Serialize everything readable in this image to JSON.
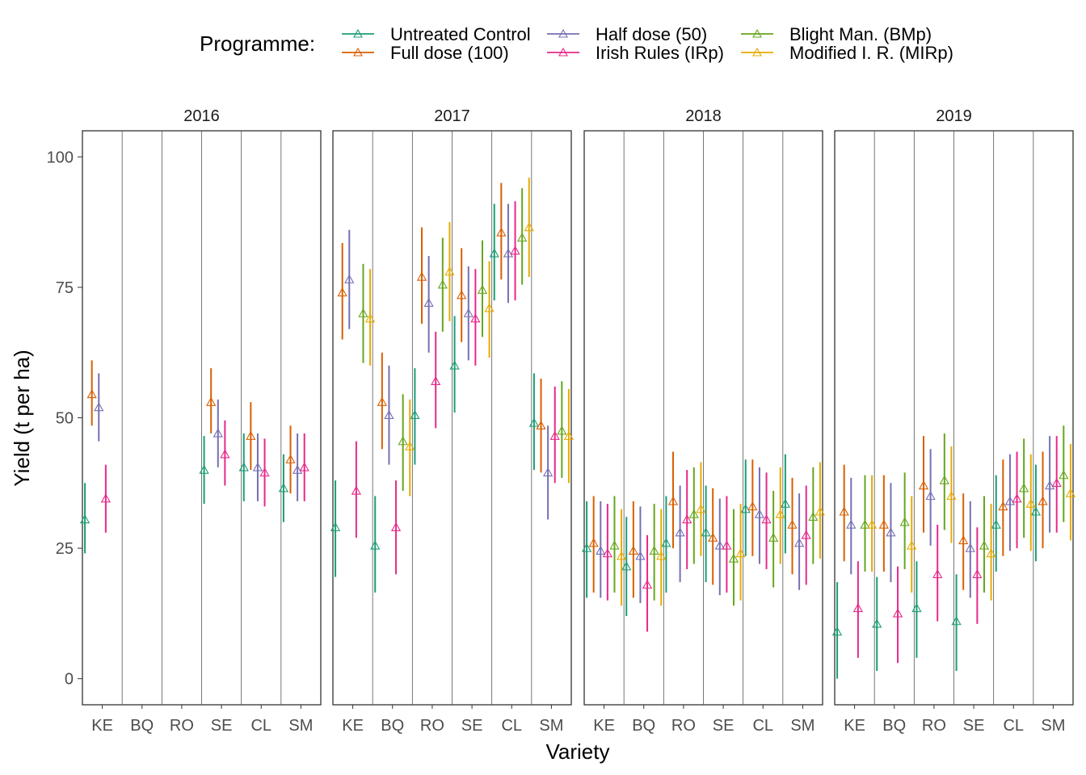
{
  "legend": {
    "title": "Programme:",
    "placement": "top"
  },
  "chart_data": {
    "type": "scatter",
    "description_kind": "faceted point-range (mean with interval) by year panel",
    "panels": [
      "2016",
      "2017",
      "2018",
      "2019"
    ],
    "categories": [
      "KE",
      "BQ",
      "RO",
      "SE",
      "CL",
      "SM"
    ],
    "xlabel": "Variety",
    "ylabel": "Yield (t per ha)",
    "ylim": [
      -5,
      105
    ],
    "yticks": [
      0,
      25,
      50,
      75,
      100
    ],
    "grid": false,
    "series": [
      {
        "name": "Untreated Control",
        "color": "#1b9e77",
        "points": {
          "2016": [
            [
              30.5,
              24,
              37.5
            ],
            null,
            null,
            [
              40,
              33.5,
              46.5
            ],
            [
              40.5,
              34,
              47
            ],
            [
              36.5,
              30,
              43
            ]
          ],
          "2017": [
            [
              29,
              19.5,
              38
            ],
            [
              25.5,
              16.5,
              35
            ],
            [
              50.5,
              41,
              59.5
            ],
            [
              60,
              51,
              69.5
            ],
            [
              81.5,
              72.5,
              91
            ],
            [
              49,
              40,
              58.5
            ]
          ],
          "2018": [
            [
              25,
              15.5,
              34
            ],
            [
              21.5,
              12,
              31
            ],
            [
              26,
              16.5,
              35
            ],
            [
              28,
              18.5,
              37
            ],
            [
              32.5,
              23.5,
              42
            ],
            [
              33.5,
              24,
              43
            ]
          ],
          "2019": [
            [
              9,
              0,
              18.5
            ],
            [
              10.5,
              1.5,
              19.5
            ],
            [
              13.5,
              4,
              22.5
            ],
            [
              11,
              1.5,
              20
            ],
            [
              29.5,
              20.5,
              39
            ],
            [
              32,
              22.5,
              41
            ]
          ]
        }
      },
      {
        "name": "Full dose (100)",
        "color": "#d95f02",
        "points": {
          "2016": [
            [
              54.5,
              48.5,
              61
            ],
            null,
            null,
            [
              53,
              47,
              59.5
            ],
            [
              46.5,
              40,
              53
            ],
            [
              42,
              35.5,
              48.5
            ]
          ],
          "2017": [
            [
              74,
              65,
              83.5
            ],
            [
              53,
              44,
              62.5
            ],
            [
              77,
              68,
              86.5
            ],
            [
              73.5,
              64.5,
              82.5
            ],
            [
              85.5,
              76.5,
              95
            ],
            [
              48.5,
              39.5,
              57.5
            ]
          ],
          "2018": [
            [
              26,
              16.5,
              35
            ],
            [
              24.5,
              15.5,
              34
            ],
            [
              34,
              25,
              43.5
            ],
            [
              27,
              18,
              36.5
            ],
            [
              33,
              23.5,
              42
            ],
            [
              29.5,
              20,
              38.5
            ]
          ],
          "2019": [
            [
              32,
              22.5,
              41
            ],
            [
              29.5,
              20.5,
              39
            ],
            [
              37,
              28,
              46.5
            ],
            [
              26.5,
              17,
              35.5
            ],
            [
              33,
              23.5,
              42
            ],
            [
              34,
              25,
              43.5
            ]
          ]
        }
      },
      {
        "name": "Half dose (50)",
        "color": "#7570b3",
        "points": {
          "2016": [
            [
              52,
              45.5,
              58.5
            ],
            null,
            null,
            [
              47,
              40.5,
              53.5
            ],
            [
              40.5,
              34,
              47
            ],
            [
              40,
              34,
              47
            ]
          ],
          "2017": [
            [
              76.5,
              67,
              86
            ],
            [
              50.5,
              41,
              60
            ],
            [
              72,
              62.5,
              81
            ],
            [
              70,
              61,
              79
            ],
            [
              81.5,
              72,
              91
            ],
            [
              39.5,
              30.5,
              48.5
            ]
          ],
          "2018": [
            [
              24.5,
              15.5,
              34
            ],
            [
              23.5,
              14.5,
              33
            ],
            [
              28,
              18.5,
              37
            ],
            [
              25.5,
              16,
              34.5
            ],
            [
              31.5,
              22,
              40.5
            ],
            [
              26,
              17,
              35.5
            ]
          ],
          "2019": [
            [
              29.5,
              20,
              38.5
            ],
            [
              28,
              18.5,
              37.5
            ],
            [
              35,
              25.5,
              44
            ],
            [
              25,
              15.5,
              34
            ],
            [
              34,
              24.5,
              43
            ],
            [
              37,
              28,
              46.5
            ]
          ]
        }
      },
      {
        "name": "Irish Rules (IRp)",
        "color": "#e7298a",
        "points": {
          "2016": [
            [
              34.5,
              28,
              41
            ],
            null,
            null,
            [
              43,
              37,
              49.5
            ],
            [
              39.5,
              33,
              46
            ],
            [
              40.5,
              34,
              47
            ]
          ],
          "2017": [
            [
              36,
              27,
              45.5
            ],
            [
              29,
              20,
              38
            ],
            [
              57,
              48,
              66.5
            ],
            [
              69,
              60,
              78.5
            ],
            [
              82,
              72.5,
              91.5
            ],
            [
              46.5,
              37.5,
              56
            ]
          ],
          "2018": [
            [
              24,
              15,
              33.5
            ],
            [
              18,
              9,
              27.5
            ],
            [
              30.5,
              21,
              40
            ],
            [
              25.5,
              16.5,
              35
            ],
            [
              30.5,
              21,
              39.5
            ],
            [
              27.5,
              18,
              37
            ]
          ],
          "2019": [
            [
              13.5,
              4,
              22.5
            ],
            [
              12.5,
              3,
              21.5
            ],
            [
              20,
              11,
              29.5
            ],
            [
              20,
              10.5,
              29
            ],
            [
              34.5,
              25,
              43.5
            ],
            [
              37.5,
              28,
              46.5
            ]
          ]
        }
      },
      {
        "name": "Blight Man. (BMp)",
        "color": "#66a61e",
        "points": {
          "2016": [
            null,
            null,
            null,
            null,
            null,
            null
          ],
          "2017": [
            [
              70,
              60.5,
              79.5
            ],
            [
              45.5,
              36,
              54.5
            ],
            [
              75.5,
              66.5,
              84.5
            ],
            [
              74.5,
              65.5,
              84
            ],
            [
              84.5,
              75.5,
              94
            ],
            [
              47.5,
              38.5,
              57
            ]
          ],
          "2018": [
            [
              25.5,
              16.5,
              35
            ],
            [
              24.5,
              15,
              33.5
            ],
            [
              31.5,
              22,
              40.5
            ],
            [
              23,
              14,
              32.5
            ],
            [
              27,
              17.5,
              36
            ],
            [
              31,
              22,
              40.5
            ]
          ],
          "2019": [
            [
              29.5,
              20.5,
              39
            ],
            [
              30,
              21,
              39.5
            ],
            [
              38,
              28.5,
              47
            ],
            [
              25.5,
              16.5,
              35
            ],
            [
              36.5,
              27,
              46
            ],
            [
              39,
              30,
              48.5
            ]
          ]
        }
      },
      {
        "name": "Modified I. R. (MIRp)",
        "color": "#e6ab02",
        "points": {
          "2016": [
            null,
            null,
            null,
            null,
            null,
            null
          ],
          "2017": [
            [
              69,
              60,
              78.5
            ],
            [
              44.5,
              35,
              53.5
            ],
            [
              78,
              68.5,
              87.5
            ],
            [
              71,
              61.5,
              80
            ],
            [
              86.5,
              77,
              96
            ],
            [
              46.5,
              37.5,
              55.5
            ]
          ],
          "2018": [
            [
              23.5,
              14,
              32.5
            ],
            [
              23.5,
              14,
              32.5
            ],
            [
              32.5,
              23.5,
              41.5
            ],
            [
              24,
              15,
              33.5
            ],
            [
              31.5,
              22,
              40.5
            ],
            [
              32,
              23,
              41.5
            ]
          ],
          "2019": [
            [
              29.5,
              20.5,
              39
            ],
            [
              25.5,
              16.5,
              35
            ],
            [
              35,
              26,
              44.5
            ],
            [
              24,
              15,
              33.5
            ],
            [
              33.5,
              24.5,
              43
            ],
            [
              35.5,
              26.5,
              45
            ]
          ]
        }
      }
    ]
  }
}
